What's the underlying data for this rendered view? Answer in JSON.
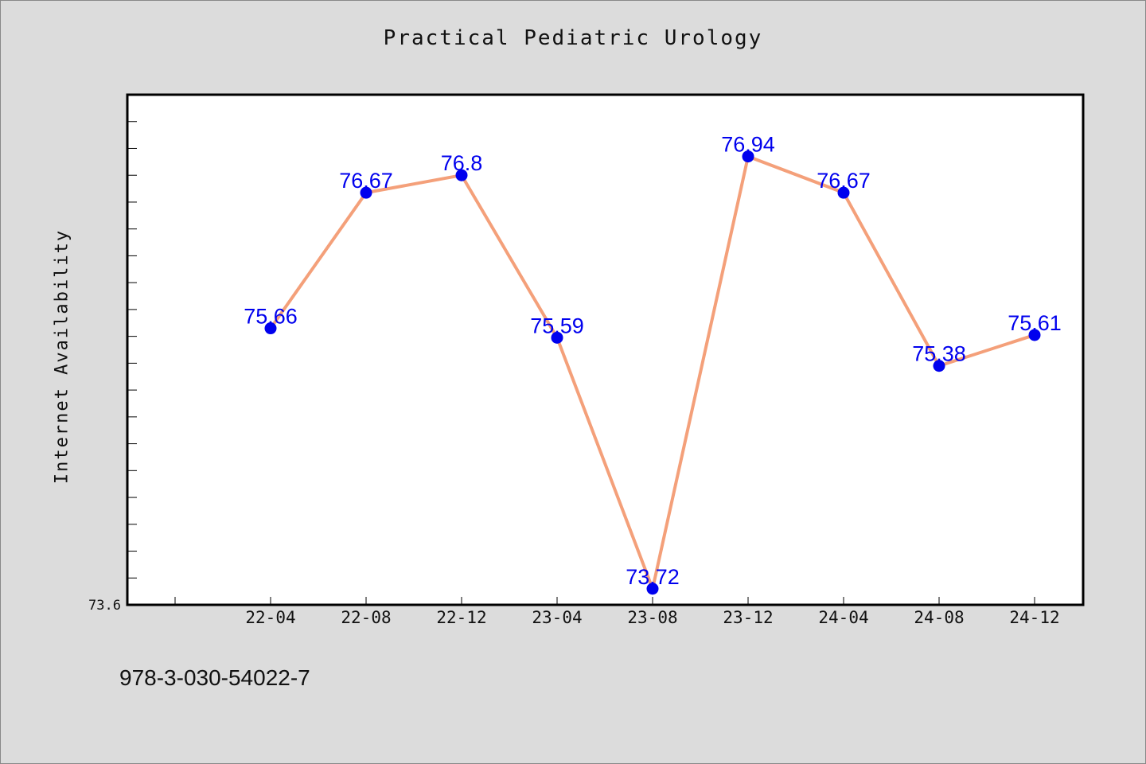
{
  "chart_data": {
    "type": "line",
    "title": "Practical Pediatric Urology",
    "xlabel": "",
    "ylabel": "Internet Availability",
    "categories": [
      "22-04",
      "22-08",
      "22-12",
      "23-04",
      "23-08",
      "23-12",
      "24-04",
      "24-08",
      "24-12"
    ],
    "values": [
      75.66,
      76.67,
      76.8,
      75.59,
      73.72,
      76.94,
      76.67,
      75.38,
      75.61
    ],
    "data_labels": [
      "75.66",
      "76.67",
      "76.8",
      "75.59",
      "73.72",
      "76.94",
      "76.67",
      "75.38",
      "75.61"
    ],
    "ylim": [
      73.6,
      77.4
    ],
    "y_tick_labels": [
      "73.6"
    ],
    "grid": false,
    "colors": {
      "line": "#f4a07a",
      "marker": "#0000ee",
      "label": "#0000ee"
    }
  },
  "footer": {
    "text": "978-3-030-54022-7"
  }
}
